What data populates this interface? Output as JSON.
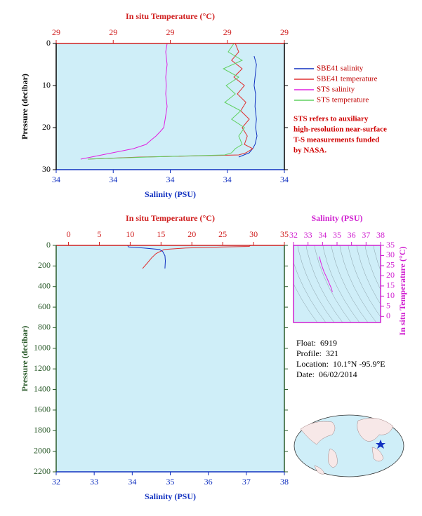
{
  "chart_data": [
    {
      "type": "profile",
      "xlabel": "Salinity (PSU)",
      "x2label": "In situ Temperature (°C)",
      "ylabel": "Pressure (decibar)",
      "axis_colors": {
        "x": "#1030c0",
        "x2": "#d02020",
        "y": "#000000"
      },
      "xlim": [
        33.6,
        34.4
      ],
      "xticks": [
        {
          "value": 33.6,
          "label": "34"
        },
        {
          "value": 33.8,
          "label": "34"
        },
        {
          "value": 34.0,
          "label": "34"
        },
        {
          "value": 34.2,
          "label": "34"
        },
        {
          "value": 34.4,
          "label": "34"
        }
      ],
      "x2lim": [
        28.6,
        29.4
      ],
      "x2ticks": [
        {
          "value": 28.6,
          "label": "29"
        },
        {
          "value": 28.8,
          "label": "29"
        },
        {
          "value": 29.0,
          "label": "29"
        },
        {
          "value": 29.2,
          "label": "29"
        },
        {
          "value": 29.4,
          "label": "29"
        }
      ],
      "ylim": [
        0,
        30
      ],
      "y_inverted": true,
      "yticks": [
        0,
        10,
        20,
        30
      ],
      "legend": "right",
      "series": [
        {
          "name": "SBE41 salinity",
          "color": "#1030c0",
          "axis": "x",
          "pressure": [
            3,
            5,
            8,
            10,
            12,
            15,
            18,
            20,
            22,
            24,
            25,
            26,
            27
          ],
          "values": [
            34.294,
            34.302,
            34.297,
            34.294,
            34.299,
            34.297,
            34.302,
            34.299,
            34.304,
            34.297,
            34.289,
            34.277,
            34.24
          ]
        },
        {
          "name": "SBE41 temperature",
          "color": "#e03030",
          "axis": "x2",
          "pressure": [
            0,
            2,
            4,
            6,
            8,
            10,
            12,
            14,
            16,
            18,
            20,
            22,
            24,
            25,
            26,
            26.5,
            27,
            27.5
          ],
          "values": [
            29.228,
            29.24,
            29.215,
            29.252,
            29.223,
            29.26,
            29.235,
            29.265,
            29.247,
            29.277,
            29.252,
            29.27,
            29.26,
            29.289,
            29.265,
            29.24,
            28.895,
            28.711
          ]
        },
        {
          "name": "STS salinity",
          "color": "#e020e0",
          "axis": "x",
          "pressure": [
            0,
            2,
            5,
            8,
            10,
            12,
            15,
            18,
            20,
            21,
            22,
            23,
            24,
            25,
            26,
            27,
            27.5
          ],
          "values": [
            33.989,
            33.984,
            33.989,
            33.984,
            33.986,
            33.984,
            33.989,
            33.982,
            33.977,
            33.964,
            33.95,
            33.932,
            33.915,
            33.871,
            33.797,
            33.723,
            33.686
          ]
        },
        {
          "name": "STS temperature",
          "color": "#60d060",
          "axis": "x2",
          "pressure": [
            0,
            2,
            4,
            6,
            8,
            10,
            12,
            14,
            16,
            18,
            20,
            22,
            24,
            25,
            26,
            26.5,
            27,
            27.5
          ],
          "values": [
            29.223,
            29.203,
            29.252,
            29.186,
            29.24,
            29.196,
            29.228,
            29.191,
            29.247,
            29.215,
            29.26,
            29.24,
            29.252,
            29.228,
            29.215,
            29.191,
            28.92,
            28.711
          ]
        }
      ],
      "annotation": [
        "STS refers to auxiliary",
        "high-resolution near-surface",
        "T-S measurements funded",
        "by NASA."
      ]
    },
    {
      "type": "profile",
      "xlabel": "Salinity (PSU)",
      "x2label": "In situ Temperature (°C)",
      "ylabel": "Pressure (decibar)",
      "axis_colors": {
        "x": "#1030c0",
        "x2": "#d02020",
        "y": "#2a5a2a"
      },
      "xlim": [
        32,
        38
      ],
      "xticks": [
        32,
        33,
        34,
        35,
        36,
        37,
        38
      ],
      "x2lim": [
        -2,
        35
      ],
      "x2ticks": [
        0,
        5,
        10,
        15,
        20,
        25,
        30,
        35
      ],
      "ylim": [
        0,
        2200
      ],
      "y_inverted": true,
      "yticks": [
        0,
        200,
        400,
        600,
        800,
        1000,
        1200,
        1400,
        1600,
        1800,
        2000,
        2200
      ],
      "series": [
        {
          "color": "#e03030",
          "axis": "x2",
          "pressure": [
            0,
            10,
            15,
            25,
            40,
            80,
            120,
            170,
            225
          ],
          "values": [
            29.5,
            29.3,
            25,
            19,
            15.5,
            14.2,
            13.5,
            12.8,
            12.0
          ]
        },
        {
          "color": "#1030c0",
          "axis": "x",
          "pressure": [
            0,
            15,
            25,
            40,
            60,
            100,
            150,
            225
          ],
          "values": [
            33.88,
            33.9,
            34.3,
            34.72,
            34.8,
            34.86,
            34.87,
            34.86
          ]
        }
      ]
    },
    {
      "type": "ts",
      "xlabel": "Salinity (PSU)",
      "ylabel": "In situ Temperature (°C)",
      "axis_colors": {
        "x": "#d020d0",
        "y": "#d020d0"
      },
      "xlim": [
        32,
        38
      ],
      "xticks": [
        32,
        33,
        34,
        35,
        36,
        37,
        38
      ],
      "ylim": [
        -3,
        35
      ],
      "yticks": [
        0,
        5,
        10,
        15,
        20,
        25,
        30,
        35
      ],
      "series": [
        {
          "color": "#e020e0",
          "x": [
            33.79,
            33.85,
            33.95,
            34.1,
            34.3,
            34.45,
            34.6,
            34.68
          ],
          "values": [
            29.5,
            27.5,
            25,
            22,
            19,
            16.5,
            14,
            12
          ]
        }
      ]
    }
  ],
  "float_info": [
    {
      "label": "Float:",
      "value": "6919"
    },
    {
      "label": "Profile:",
      "value": "321"
    },
    {
      "label": "Location:",
      "value": "10.1°N  -95.9°E"
    },
    {
      "label": "Date:",
      "value": "06/02/2014"
    }
  ]
}
